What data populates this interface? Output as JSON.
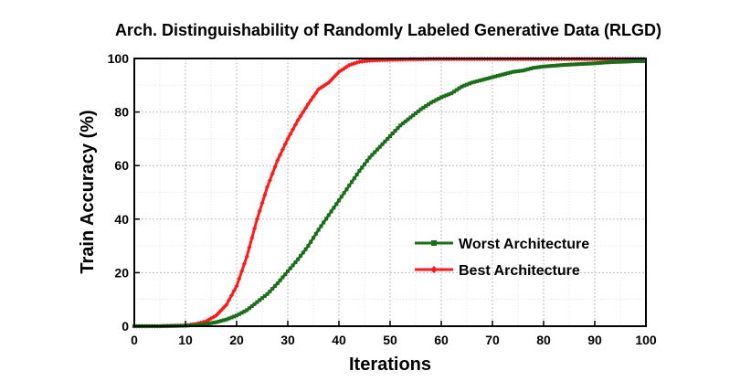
{
  "chart_data": {
    "type": "line",
    "title": "Arch. Distinguishability of Randomly Labeled Generative Data (RLGD)",
    "xlabel": "Iterations",
    "ylabel": "Train Accuracy (%)",
    "xlim": [
      0,
      100
    ],
    "ylim": [
      0,
      100
    ],
    "xticks": [
      0,
      10,
      20,
      30,
      40,
      50,
      60,
      70,
      80,
      90,
      100
    ],
    "yticks": [
      0,
      20,
      40,
      60,
      80,
      100
    ],
    "grid": true,
    "legend_position": "center-right",
    "x": [
      0,
      5,
      10,
      12,
      14,
      16,
      18,
      20,
      22,
      24,
      26,
      28,
      30,
      32,
      34,
      36,
      38,
      40,
      42,
      44,
      46,
      48,
      50,
      52,
      54,
      56,
      58,
      60,
      62,
      64,
      66,
      68,
      70,
      72,
      74,
      76,
      78,
      80,
      82,
      84,
      86,
      88,
      90,
      92,
      94,
      96,
      98,
      100
    ],
    "series": [
      {
        "name": "Worst Architecture",
        "color": "#1a6e1a",
        "marker": "square",
        "values": [
          0,
          0,
          0.2,
          0.4,
          0.8,
          1.5,
          2.5,
          4,
          6,
          9,
          12,
          16,
          20.5,
          25,
          30,
          36,
          41.5,
          47,
          52.5,
          58,
          63,
          67,
          71,
          75,
          78,
          81,
          83.5,
          85.5,
          87,
          89.5,
          91,
          92,
          93,
          94,
          95,
          95.5,
          96.5,
          97,
          97.3,
          97.6,
          97.8,
          98,
          98.2,
          98.5,
          98.7,
          98.8,
          99,
          99
        ]
      },
      {
        "name": "Best Architecture",
        "color": "#ff1a1a",
        "marker": "diamond",
        "values": [
          0,
          0,
          0.3,
          0.8,
          1.8,
          4,
          8,
          15,
          26,
          40,
          52,
          62,
          70,
          77,
          83,
          88.5,
          91,
          95,
          97.5,
          98.8,
          99.2,
          99.4,
          99.5,
          99.6,
          99.7,
          99.7,
          99.8,
          99.8,
          99.8,
          99.8,
          99.8,
          99.8,
          99.8,
          99.8,
          99.8,
          99.8,
          99.8,
          99.8,
          99.8,
          99.8,
          99.8,
          99.8,
          99.8,
          99.8,
          99.8,
          99.8,
          99.8,
          99.8
        ]
      }
    ]
  }
}
